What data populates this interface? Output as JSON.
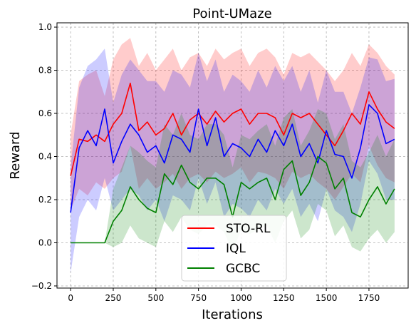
{
  "chart_data": {
    "type": "line",
    "title": "Point-UMaze",
    "xlabel": "Iterations",
    "ylabel": "Reward",
    "xlim": [
      -80,
      1980
    ],
    "ylim": [
      -0.21,
      1.02
    ],
    "xticks": [
      0,
      250,
      500,
      750,
      1000,
      1250,
      1500,
      1750
    ],
    "xtick_labels": [
      "0",
      "250",
      "500",
      "750",
      "1000",
      "1250",
      "1500",
      "1750"
    ],
    "yticks": [
      -0.2,
      0.0,
      0.2,
      0.4,
      0.6,
      0.8,
      1.0
    ],
    "ytick_labels": [
      "−0.2",
      "0.0",
      "0.2",
      "0.4",
      "0.6",
      "0.8",
      "1.0"
    ],
    "grid": true,
    "legend": "lower-center",
    "x": [
      0,
      50,
      100,
      150,
      200,
      250,
      300,
      350,
      400,
      450,
      500,
      550,
      600,
      650,
      700,
      750,
      800,
      850,
      900,
      950,
      1000,
      1050,
      1100,
      1150,
      1200,
      1250,
      1300,
      1350,
      1400,
      1450,
      1500,
      1550,
      1600,
      1650,
      1700,
      1750,
      1800,
      1850,
      1900
    ],
    "series": [
      {
        "name": "STO-RL",
        "color": "#ff0000",
        "values": [
          0.31,
          0.48,
          0.47,
          0.5,
          0.47,
          0.55,
          0.6,
          0.74,
          0.52,
          0.56,
          0.5,
          0.53,
          0.6,
          0.5,
          0.57,
          0.6,
          0.55,
          0.61,
          0.56,
          0.6,
          0.62,
          0.55,
          0.6,
          0.6,
          0.58,
          0.5,
          0.6,
          0.58,
          0.6,
          0.55,
          0.5,
          0.45,
          0.52,
          0.6,
          0.55,
          0.7,
          0.62,
          0.56,
          0.53
        ],
        "upper": [
          0.5,
          0.75,
          0.78,
          0.8,
          0.68,
          0.85,
          0.92,
          0.95,
          0.82,
          0.88,
          0.8,
          0.85,
          0.9,
          0.8,
          0.86,
          0.88,
          0.82,
          0.9,
          0.85,
          0.88,
          0.9,
          0.82,
          0.88,
          0.9,
          0.86,
          0.78,
          0.88,
          0.86,
          0.88,
          0.84,
          0.8,
          0.75,
          0.8,
          0.88,
          0.82,
          0.92,
          0.88,
          0.82,
          0.78
        ],
        "lower": [
          0.15,
          0.25,
          0.22,
          0.28,
          0.25,
          0.3,
          0.33,
          0.45,
          0.25,
          0.3,
          0.25,
          0.28,
          0.32,
          0.25,
          0.3,
          0.32,
          0.28,
          0.33,
          0.3,
          0.32,
          0.35,
          0.28,
          0.33,
          0.32,
          0.3,
          0.25,
          0.33,
          0.3,
          0.32,
          0.28,
          0.25,
          0.2,
          0.26,
          0.32,
          0.28,
          0.45,
          0.36,
          0.3,
          0.28
        ]
      },
      {
        "name": "IQL",
        "color": "#0000ff",
        "values": [
          0.14,
          0.44,
          0.52,
          0.45,
          0.62,
          0.37,
          0.47,
          0.55,
          0.5,
          0.42,
          0.45,
          0.37,
          0.5,
          0.48,
          0.42,
          0.62,
          0.45,
          0.58,
          0.4,
          0.46,
          0.44,
          0.4,
          0.48,
          0.42,
          0.52,
          0.45,
          0.55,
          0.4,
          0.46,
          0.37,
          0.52,
          0.41,
          0.4,
          0.3,
          0.44,
          0.64,
          0.6,
          0.46,
          0.48
        ],
        "upper": [
          0.35,
          0.72,
          0.82,
          0.85,
          0.9,
          0.65,
          0.78,
          0.85,
          0.8,
          0.75,
          0.75,
          0.7,
          0.8,
          0.78,
          0.72,
          0.88,
          0.75,
          0.85,
          0.7,
          0.78,
          0.75,
          0.7,
          0.8,
          0.72,
          0.82,
          0.75,
          0.82,
          0.7,
          0.8,
          0.65,
          0.8,
          0.7,
          0.7,
          0.6,
          0.72,
          0.86,
          0.85,
          0.75,
          0.76
        ],
        "lower": [
          -0.14,
          0.12,
          0.2,
          0.15,
          0.3,
          0.15,
          0.2,
          0.25,
          0.22,
          0.15,
          0.2,
          0.1,
          0.22,
          0.2,
          0.15,
          0.3,
          0.18,
          0.28,
          0.12,
          0.18,
          0.16,
          0.12,
          0.2,
          0.15,
          0.25,
          0.18,
          0.25,
          0.12,
          0.18,
          0.1,
          0.25,
          0.15,
          0.12,
          0.05,
          0.18,
          0.38,
          0.32,
          0.2,
          0.2
        ]
      },
      {
        "name": "GCBC",
        "color": "#008000",
        "values": [
          0.0,
          0.0,
          0.0,
          0.0,
          0.0,
          0.1,
          0.15,
          0.26,
          0.2,
          0.16,
          0.14,
          0.32,
          0.27,
          0.36,
          0.28,
          0.25,
          0.3,
          0.3,
          0.27,
          0.12,
          0.28,
          0.25,
          0.28,
          0.3,
          0.2,
          0.34,
          0.38,
          0.22,
          0.28,
          0.4,
          0.37,
          0.25,
          0.3,
          0.14,
          0.12,
          0.2,
          0.26,
          0.18,
          0.25
        ],
        "upper": [
          0.0,
          0.0,
          0.0,
          0.0,
          0.0,
          0.25,
          0.35,
          0.45,
          0.42,
          0.38,
          0.35,
          0.55,
          0.5,
          0.6,
          0.5,
          0.48,
          0.55,
          0.55,
          0.5,
          0.35,
          0.5,
          0.48,
          0.52,
          0.55,
          0.45,
          0.58,
          0.62,
          0.45,
          0.52,
          0.62,
          0.6,
          0.48,
          0.55,
          0.38,
          0.35,
          0.42,
          0.5,
          0.4,
          0.48
        ],
        "lower": [
          0.0,
          0.0,
          0.0,
          0.0,
          0.0,
          -0.02,
          0.0,
          0.08,
          0.02,
          0.0,
          -0.02,
          0.1,
          0.05,
          0.12,
          0.06,
          0.04,
          0.08,
          0.08,
          0.05,
          -0.04,
          0.06,
          0.04,
          0.06,
          0.08,
          0.0,
          0.1,
          0.15,
          0.02,
          0.06,
          0.18,
          0.15,
          0.03,
          0.08,
          -0.02,
          -0.04,
          0.02,
          0.06,
          0.0,
          0.05
        ]
      }
    ]
  }
}
